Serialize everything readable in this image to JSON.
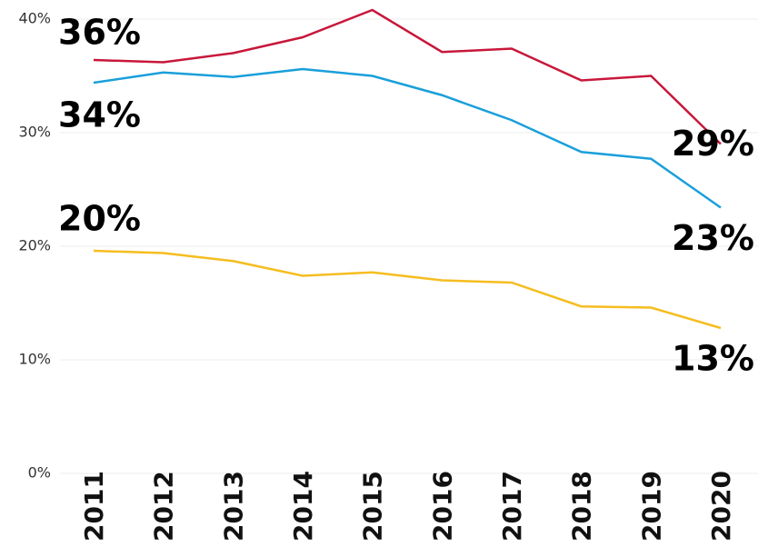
{
  "chart_data": {
    "type": "line",
    "categories": [
      "2011",
      "2012",
      "2013",
      "2014",
      "2015",
      "2016",
      "2017",
      "2018",
      "2019",
      "2020"
    ],
    "series": [
      {
        "color": "#c8173a",
        "values": [
          36.4,
          36.2,
          37.0,
          38.4,
          40.8,
          37.1,
          37.4,
          34.6,
          35.0,
          29.0
        ],
        "value_labels": [
          "36%",
          null,
          null,
          null,
          null,
          null,
          null,
          null,
          null,
          "29%"
        ]
      },
      {
        "color": "#1a9fdb",
        "values": [
          34.4,
          35.3,
          34.9,
          35.6,
          35.0,
          33.3,
          31.1,
          28.3,
          27.7,
          23.4
        ],
        "value_labels": [
          "34%",
          null,
          null,
          null,
          null,
          null,
          null,
          null,
          null,
          "23%"
        ]
      },
      {
        "color": "#f5bd1f",
        "values": [
          19.6,
          19.4,
          18.7,
          17.4,
          17.7,
          17.0,
          16.8,
          14.7,
          14.6,
          12.8
        ],
        "value_labels": [
          "20%",
          null,
          null,
          null,
          null,
          null,
          null,
          null,
          null,
          "13%"
        ]
      }
    ],
    "ylim": [
      0,
      40
    ],
    "yticks": [
      {
        "value": 0,
        "label": "0%"
      },
      {
        "value": 10,
        "label": "10%"
      },
      {
        "value": 20,
        "label": "20%"
      },
      {
        "value": 30,
        "label": "30%"
      },
      {
        "value": 40,
        "label": "40%"
      }
    ],
    "grid": true
  }
}
